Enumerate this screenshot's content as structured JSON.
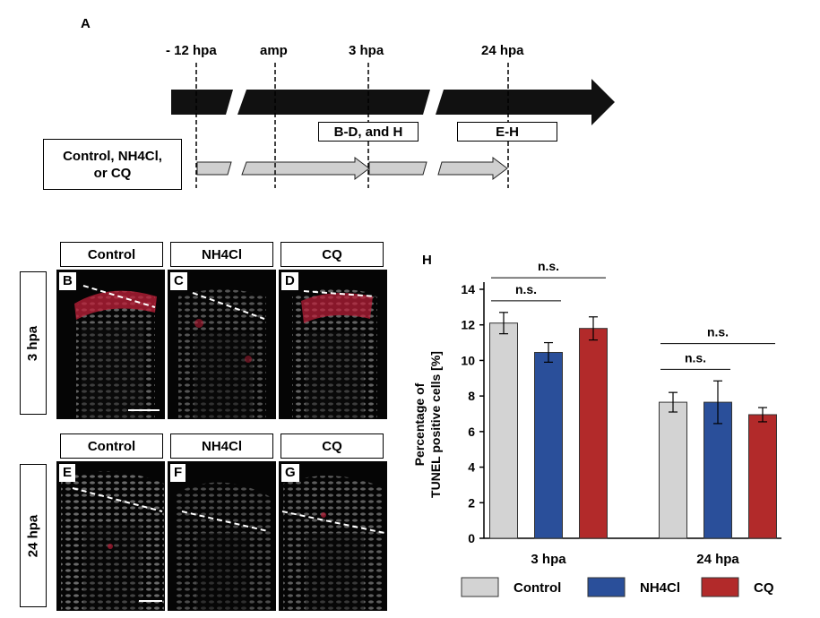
{
  "panel_a": {
    "letter": "A",
    "time_labels": [
      "- 12 hpa",
      "amp",
      "3 hpa",
      "24 hpa"
    ],
    "treatment_box": [
      "Control, NH4Cl,",
      "or CQ"
    ],
    "box_bd": "B-D, and H",
    "box_eh": "E-H"
  },
  "images": {
    "columns": [
      "Control",
      "NH4Cl",
      "CQ"
    ],
    "rows": [
      "3 hpa",
      "24 hpa"
    ],
    "letters_row1": [
      "B",
      "C",
      "D"
    ],
    "letters_row2": [
      "E",
      "F",
      "G"
    ]
  },
  "chart_data": {
    "type": "bar",
    "panel_letter": "H",
    "categories": [
      "3 hpa",
      "24 hpa"
    ],
    "series": [
      {
        "name": "Control",
        "values": [
          12.1,
          7.65
        ],
        "errors": [
          0.6,
          0.55
        ],
        "color": "#d3d3d3"
      },
      {
        "name": "NH4Cl",
        "values": [
          10.45,
          7.65
        ],
        "errors": [
          0.55,
          1.2
        ],
        "color": "#2a4f9a"
      },
      {
        "name": "CQ",
        "values": [
          11.8,
          6.95
        ],
        "errors": [
          0.65,
          0.4
        ],
        "color": "#b22a2a"
      }
    ],
    "ylabel": [
      "Percentage of",
      "TUNEL positive cells [%]"
    ],
    "ylim": [
      0,
      14
    ],
    "yticks": [
      0,
      2,
      4,
      6,
      8,
      10,
      12,
      14
    ],
    "grid": false,
    "legend_position": "bottom",
    "annotations": [
      "n.s.",
      "n.s.",
      "n.s.",
      "n.s."
    ]
  }
}
